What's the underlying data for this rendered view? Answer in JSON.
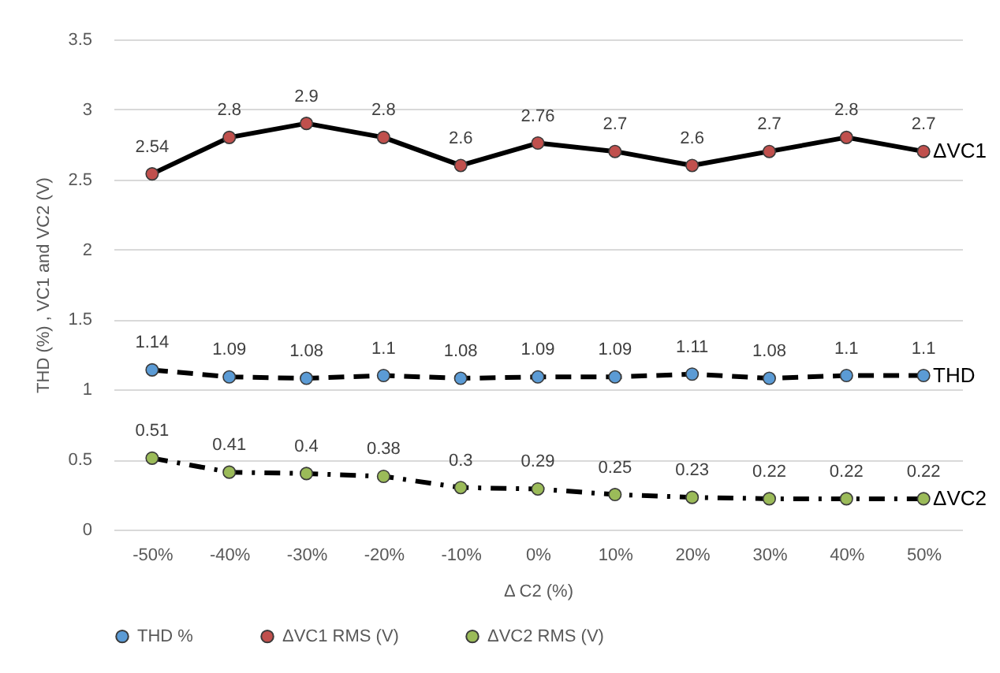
{
  "chart_data": {
    "type": "line",
    "xlabel": "Δ C2 (%)",
    "ylabel": "THD (%) , VC1 and VC2 (V)",
    "categories": [
      "-50%",
      "-40%",
      "-30%",
      "-20%",
      "-10%",
      "0%",
      "10%",
      "20%",
      "30%",
      "40%",
      "50%"
    ],
    "series": [
      {
        "name": "THD %",
        "color": "#5b9bd5",
        "line_style": "dashed",
        "values": [
          1.14,
          1.09,
          1.08,
          1.1,
          1.08,
          1.09,
          1.09,
          1.11,
          1.08,
          1.1,
          1.1
        ]
      },
      {
        "name": "ΔVC1 RMS (V)",
        "color": "#c0504d",
        "line_style": "solid",
        "values": [
          2.54,
          2.8,
          2.9,
          2.8,
          2.6,
          2.76,
          2.7,
          2.6,
          2.7,
          2.8,
          2.7
        ]
      },
      {
        "name": "ΔVC2 RMS (V)",
        "color": "#9bbb59",
        "line_style": "dotted",
        "values": [
          0.51,
          0.41,
          0.4,
          0.38,
          0.3,
          0.29,
          0.25,
          0.23,
          0.22,
          0.22,
          0.22
        ]
      }
    ],
    "ylim": [
      0,
      3.5
    ],
    "yticks": [
      0,
      0.5,
      1,
      1.5,
      2,
      2.5,
      3,
      3.5
    ],
    "annotations": [
      {
        "text": "ΔVC1",
        "x": "50%",
        "y": 2.7
      },
      {
        "text": "THD",
        "x": "50%",
        "y": 1.1
      },
      {
        "text": "ΔVC2",
        "x": "50%",
        "y": 0.22
      }
    ],
    "data_labels": true,
    "grid": "y",
    "legend": "bottom",
    "marker": "circle"
  }
}
